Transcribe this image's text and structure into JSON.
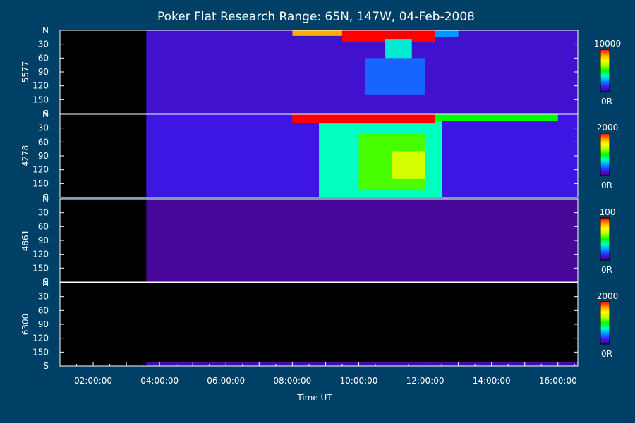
{
  "chart_data": {
    "type": "heatmap",
    "title": "Poker Flat Research Range: 65N, 147W, 04-Feb-2008",
    "xlabel": "Time UT",
    "x_ticks": [
      "02:00:00",
      "04:00:00",
      "06:00:00",
      "08:00:00",
      "10:00:00",
      "12:00:00",
      "14:00:00",
      "16:00:00"
    ],
    "x_range_hours": [
      1.0,
      16.6
    ],
    "data_start_hour": 3.6,
    "y_ticks": [
      "N",
      "30",
      "60",
      "90",
      "120",
      "150",
      "S"
    ],
    "colorbar_colors": [
      "#4b0078",
      "#3a1cff",
      "#0096ff",
      "#00ffc8",
      "#00ff00",
      "#b4ff00",
      "#ffff00",
      "#ff9600",
      "#ff0000"
    ],
    "panels": [
      {
        "name": "5577",
        "cb_max": "10000",
        "cb_min": "0R",
        "features": [
          {
            "x0": 3.6,
            "x1": 16.6,
            "y0": 0,
            "y1": 180,
            "level": 0.08
          },
          {
            "x0": 8.0,
            "x1": 9.5,
            "y0": 0,
            "y1": 12,
            "level": 0.85
          },
          {
            "x0": 9.5,
            "x1": 12.3,
            "y0": 0,
            "y1": 25,
            "level": 1.0
          },
          {
            "x0": 10.8,
            "x1": 11.6,
            "y0": 20,
            "y1": 80,
            "level": 0.35
          },
          {
            "x0": 10.2,
            "x1": 12.0,
            "y0": 60,
            "y1": 140,
            "level": 0.2
          },
          {
            "x0": 12.3,
            "x1": 13.0,
            "y0": 0,
            "y1": 15,
            "level": 0.25
          }
        ]
      },
      {
        "name": "4278",
        "cb_max": "2000",
        "cb_min": "0R",
        "features": [
          {
            "x0": 3.6,
            "x1": 16.6,
            "y0": 0,
            "y1": 180,
            "level": 0.1
          },
          {
            "x0": 8.8,
            "x1": 12.5,
            "y0": 0,
            "y1": 180,
            "level": 0.38
          },
          {
            "x0": 10.0,
            "x1": 12.0,
            "y0": 40,
            "y1": 165,
            "level": 0.55
          },
          {
            "x0": 11.0,
            "x1": 12.0,
            "y0": 80,
            "y1": 140,
            "level": 0.68
          },
          {
            "x0": 8.0,
            "x1": 16.0,
            "y0": 0,
            "y1": 14,
            "level": 0.5
          },
          {
            "x0": 8.0,
            "x1": 12.3,
            "y0": 0,
            "y1": 20,
            "level": 1.0
          }
        ]
      },
      {
        "name": "4861",
        "cb_max": "100",
        "cb_min": "0R",
        "features": [
          {
            "x0": 3.6,
            "x1": 16.6,
            "y0": 0,
            "y1": 180,
            "level": 0.03
          }
        ]
      },
      {
        "name": "6300",
        "cb_max": "2000",
        "cb_min": "0R",
        "features": [
          {
            "x0": 3.6,
            "x1": 16.6,
            "y0": 172,
            "y1": 180,
            "level": 0.05
          }
        ]
      }
    ]
  }
}
